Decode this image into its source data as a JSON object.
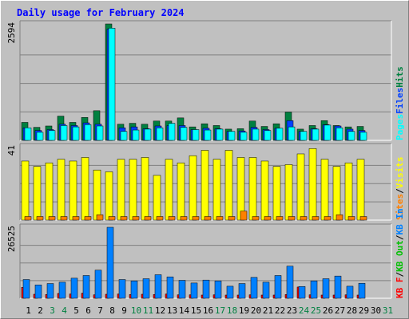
{
  "title": "Daily usage for February 2024",
  "colors": {
    "background": "#c0c0c0",
    "plot": "#c0c0c0",
    "title": "#0000ff",
    "pages": "#00ffff",
    "files": "#0040ff",
    "hits": "#008040",
    "visits": "#ffff00",
    "sites": "#ff8000",
    "kbin": "#0080ff",
    "kbout": "#00c000",
    "kbf": "#ff0000",
    "day_weekday": "#000000",
    "day_weekend": "#008040"
  },
  "chart_data": [
    {
      "type": "bar",
      "name": "hits-files-pages",
      "ymax_label": "2594",
      "ylim": [
        0,
        2594
      ],
      "legend": [
        {
          "label": "Pages",
          "key": "pages"
        },
        {
          "label": "Files",
          "key": "files"
        },
        {
          "label": "Hits",
          "key": "hits"
        }
      ],
      "x": [
        1,
        2,
        3,
        4,
        5,
        6,
        7,
        8,
        9,
        10,
        11,
        12,
        13,
        14,
        15,
        16,
        17,
        18,
        19,
        20,
        21,
        22,
        23,
        24,
        25,
        26,
        27,
        28,
        29
      ],
      "series": [
        {
          "key": "hits",
          "values": [
            400,
            290,
            320,
            540,
            400,
            510,
            660,
            2594,
            360,
            380,
            360,
            430,
            430,
            500,
            300,
            370,
            330,
            250,
            260,
            430,
            310,
            370,
            630,
            250,
            330,
            440,
            330,
            300,
            310
          ]
        },
        {
          "key": "files",
          "values": [
            280,
            220,
            240,
            360,
            330,
            390,
            360,
            2480,
            280,
            300,
            260,
            320,
            330,
            330,
            240,
            270,
            260,
            200,
            210,
            290,
            240,
            270,
            440,
            200,
            260,
            350,
            320,
            250,
            220
          ]
        },
        {
          "key": "pages",
          "values": [
            280,
            180,
            220,
            330,
            300,
            350,
            320,
            2500,
            200,
            230,
            250,
            280,
            380,
            290,
            240,
            230,
            250,
            200,
            180,
            250,
            220,
            270,
            300,
            200,
            250,
            340,
            280,
            200,
            180
          ]
        }
      ]
    },
    {
      "type": "bar",
      "name": "visits-sites",
      "ymax_label": "41",
      "ylim": [
        0,
        41
      ],
      "legend": [
        {
          "label": "Sites",
          "key": "sites"
        },
        {
          "label": "/",
          "key": "sep"
        },
        {
          "label": "Visits",
          "key": "visits"
        }
      ],
      "x": [
        1,
        2,
        3,
        4,
        5,
        6,
        7,
        8,
        9,
        10,
        11,
        12,
        13,
        14,
        15,
        16,
        17,
        18,
        19,
        20,
        21,
        22,
        23,
        24,
        25,
        26,
        27,
        28,
        29
      ],
      "series": [
        {
          "key": "visits",
          "values": [
            33,
            30,
            32,
            34,
            33,
            35,
            28,
            27,
            34,
            34,
            35,
            25,
            34,
            32,
            36,
            39,
            34,
            39,
            35,
            35,
            33,
            30,
            31,
            37,
            40,
            34,
            30,
            32,
            34
          ]
        },
        {
          "key": "sites",
          "values": [
            2,
            2,
            2,
            2,
            2,
            2,
            3,
            2,
            2,
            2,
            2,
            2,
            2,
            2,
            2,
            2,
            2,
            2,
            5,
            2,
            2,
            2,
            2,
            2,
            2,
            2,
            3,
            2,
            2
          ]
        }
      ]
    },
    {
      "type": "bar",
      "name": "kbytes",
      "ymax_label": "26525",
      "ylim": [
        0,
        26525
      ],
      "legend": [
        {
          "label": "KB F",
          "key": "kbf"
        },
        {
          "label": "/",
          "key": "sep"
        },
        {
          "label": "KB Out",
          "key": "kbout"
        },
        {
          "label": "/",
          "key": "sep"
        },
        {
          "label": "KB In",
          "key": "kbin"
        }
      ],
      "x": [
        1,
        2,
        3,
        4,
        5,
        6,
        7,
        8,
        9,
        10,
        11,
        12,
        13,
        14,
        15,
        16,
        17,
        18,
        19,
        20,
        21,
        22,
        23,
        24,
        25,
        26,
        27,
        28,
        29
      ],
      "series": [
        {
          "key": "kbin",
          "values": [
            7000,
            5000,
            5500,
            6000,
            7500,
            8500,
            10500,
            26525,
            7000,
            6500,
            7300,
            8800,
            8000,
            6700,
            5700,
            6800,
            6500,
            4500,
            5500,
            7800,
            6000,
            8500,
            12000,
            4400,
            6500,
            7300,
            8300,
            4500,
            5600
          ]
        },
        {
          "key": "kbf",
          "values": [
            4100,
            1500,
            1400,
            1800,
            1600,
            1900,
            1300,
            1500,
            1600,
            1400,
            1500,
            1400,
            1600,
            1300,
            1300,
            1200,
            1300,
            1200,
            1200,
            1300,
            1200,
            1200,
            1400,
            4200,
            1300,
            1200,
            1200,
            1300,
            1200
          ]
        }
      ]
    }
  ],
  "days": [
    {
      "n": "1",
      "weekend": false
    },
    {
      "n": "2",
      "weekend": false
    },
    {
      "n": "3",
      "weekend": true
    },
    {
      "n": "4",
      "weekend": true
    },
    {
      "n": "5",
      "weekend": false
    },
    {
      "n": "6",
      "weekend": false
    },
    {
      "n": "7",
      "weekend": false
    },
    {
      "n": "8",
      "weekend": false
    },
    {
      "n": "9",
      "weekend": false
    },
    {
      "n": "10",
      "weekend": true
    },
    {
      "n": "11",
      "weekend": true
    },
    {
      "n": "12",
      "weekend": false
    },
    {
      "n": "13",
      "weekend": false
    },
    {
      "n": "14",
      "weekend": false
    },
    {
      "n": "15",
      "weekend": false
    },
    {
      "n": "16",
      "weekend": false
    },
    {
      "n": "17",
      "weekend": true
    },
    {
      "n": "18",
      "weekend": true
    },
    {
      "n": "19",
      "weekend": false
    },
    {
      "n": "20",
      "weekend": false
    },
    {
      "n": "21",
      "weekend": false
    },
    {
      "n": "22",
      "weekend": false
    },
    {
      "n": "23",
      "weekend": false
    },
    {
      "n": "24",
      "weekend": true
    },
    {
      "n": "25",
      "weekend": true
    },
    {
      "n": "26",
      "weekend": false
    },
    {
      "n": "27",
      "weekend": false
    },
    {
      "n": "28",
      "weekend": false
    },
    {
      "n": "29",
      "weekend": false
    },
    {
      "n": "30",
      "weekend": false
    },
    {
      "n": "31",
      "weekend": true
    }
  ]
}
